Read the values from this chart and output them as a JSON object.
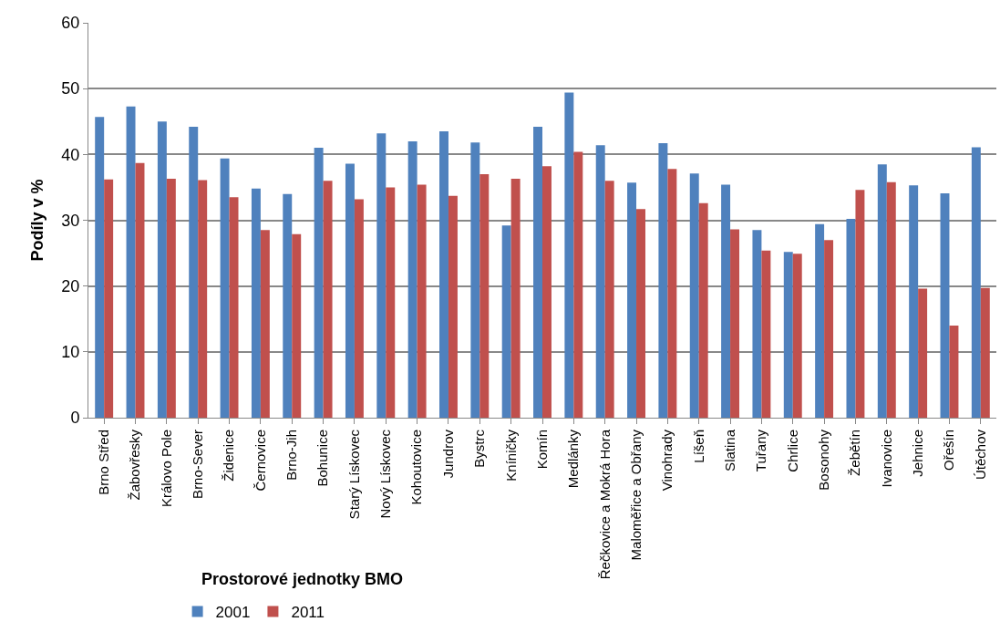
{
  "chart_data": {
    "type": "bar",
    "xlabel": "Prostorové jednotky BMO",
    "ylabel": "Podíly v %",
    "categories": [
      "Brno Střed",
      "Žabovřesky",
      "Královo Pole",
      "Brno-Sever",
      "Židenice",
      "Černovice",
      "Brno-Jih",
      "Bohunice",
      "Starý Lískovec",
      "Nový Lískovec",
      "Kohoutovice",
      "Jundrov",
      "Bystrc",
      "Kníničky",
      "Komín",
      "Medlánky",
      "Řečkovice a Mokrá Hora",
      "Maloměřice a Obřany",
      "Vinohrady",
      "Líšeň",
      "Slatina",
      "Tuřany",
      "Chrlice",
      "Bosonohy",
      "Žebětín",
      "Ivanovice",
      "Jehnice",
      "Ořešín",
      "Útěchov"
    ],
    "series": [
      {
        "name": "2001",
        "color": "#4f81bd",
        "values": [
          45.7,
          47.3,
          45.0,
          44.2,
          39.4,
          34.8,
          34.0,
          41.0,
          38.6,
          43.2,
          42.0,
          43.5,
          41.8,
          29.2,
          44.2,
          49.4,
          41.4,
          35.7,
          41.7,
          37.1,
          35.4,
          28.5,
          25.2,
          29.4,
          30.2,
          38.5,
          35.3,
          34.1,
          41.1
        ]
      },
      {
        "name": "2011",
        "color": "#c0504d",
        "values": [
          36.2,
          38.7,
          36.3,
          36.1,
          33.5,
          28.5,
          27.9,
          36.0,
          33.2,
          35.0,
          35.4,
          33.7,
          37.0,
          36.3,
          38.2,
          40.4,
          36.0,
          31.7,
          37.8,
          32.6,
          28.6,
          25.4,
          24.9,
          27.0,
          34.6,
          35.8,
          19.6,
          14.0,
          19.7
        ]
      }
    ],
    "ylim": [
      0,
      60
    ],
    "yticks": [
      0,
      10,
      20,
      30,
      40,
      50,
      60
    ],
    "grid": "y",
    "legend": "bottom left"
  }
}
